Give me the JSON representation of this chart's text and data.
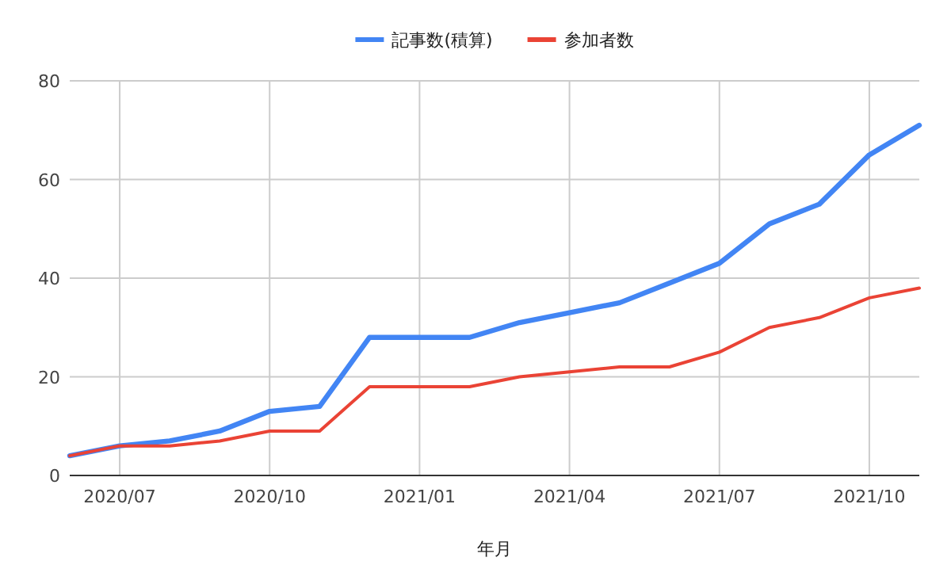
{
  "chart_data": {
    "type": "line",
    "xlabel": "年月",
    "x": [
      "2020-06",
      "2020-07",
      "2020-08",
      "2020-09",
      "2020-10",
      "2020-11",
      "2020-12",
      "2021-01",
      "2021-02",
      "2021-03",
      "2021-04",
      "2021-05",
      "2021-06",
      "2021-07",
      "2021-08",
      "2021-09",
      "2021-10",
      "2021-11"
    ],
    "series": [
      {
        "name": "記事数(積算)",
        "color": "#4285f4",
        "values": [
          4,
          6,
          7,
          9,
          13,
          14,
          28,
          28,
          28,
          31,
          33,
          35,
          39,
          43,
          51,
          55,
          65,
          71
        ]
      },
      {
        "name": "参加者数",
        "color": "#ea4335",
        "values": [
          4,
          6,
          6,
          7,
          9,
          9,
          18,
          18,
          18,
          20,
          21,
          22,
          22,
          25,
          30,
          32,
          36,
          38
        ]
      }
    ],
    "xlim": [
      "2020-06",
      "2021-11"
    ],
    "xticks": [
      {
        "value": "2020-07",
        "label": "2020/07"
      },
      {
        "value": "2020-10",
        "label": "2020/10"
      },
      {
        "value": "2021-01",
        "label": "2021/01"
      },
      {
        "value": "2021-04",
        "label": "2021/04"
      },
      {
        "value": "2021-07",
        "label": "2021/07"
      },
      {
        "value": "2021-10",
        "label": "2021/10"
      }
    ],
    "ylim": [
      0,
      80
    ],
    "yticks": [
      0,
      20,
      40,
      60,
      80
    ],
    "grid": true,
    "legend": "top",
    "marker": "none",
    "line_style": "solid"
  }
}
